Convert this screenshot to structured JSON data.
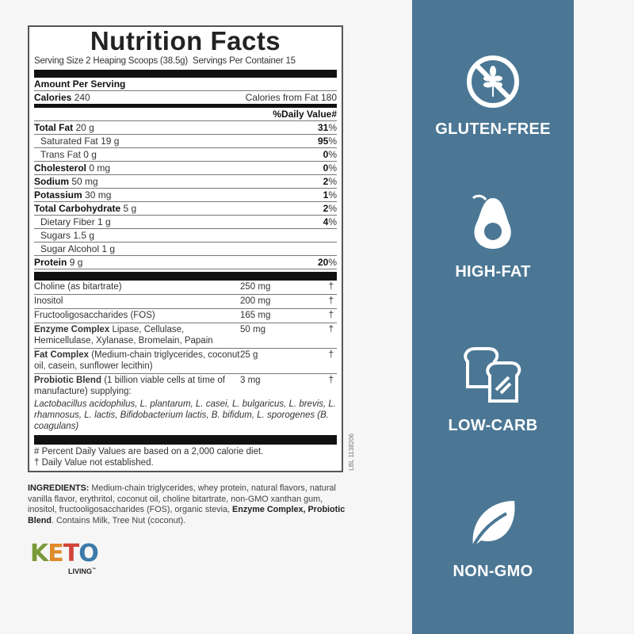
{
  "label": {
    "title": "Nutrition Facts",
    "serving_size": "Serving Size 2 Heaping Scoops (38.5g)",
    "servings_per_container": "Servings Per Container 15",
    "amount_per_serving": "Amount Per Serving",
    "calories_label": "Calories",
    "calories_value": "240",
    "calories_from_fat": "Calories from Fat 180",
    "daily_value_header": "%Daily Value#",
    "nutrients": [
      {
        "name": "Total Fat",
        "amount": "20 g",
        "dv": "31",
        "bold": true
      },
      {
        "name": "Saturated Fat",
        "amount": "19 g",
        "dv": "95",
        "bold": false
      },
      {
        "name": "Trans Fat",
        "amount": "0 g",
        "dv": "0",
        "bold": false
      },
      {
        "name": "Cholesterol",
        "amount": "0 mg",
        "dv": "0",
        "bold": true
      },
      {
        "name": "Sodium",
        "amount": "50 mg",
        "dv": "2",
        "bold": true
      },
      {
        "name": "Potassium",
        "amount": "30 mg",
        "dv": "1",
        "bold": true
      },
      {
        "name": "Total Carbohydrate",
        "amount": "5 g",
        "dv": "2",
        "bold": true
      },
      {
        "name": "Dietary Fiber",
        "amount": "1 g",
        "dv": "4",
        "bold": false
      },
      {
        "name": "Sugars",
        "amount": "1.5 g",
        "dv": "",
        "bold": false
      },
      {
        "name": "Sugar Alcohol",
        "amount": "1 g",
        "dv": "",
        "bold": false
      },
      {
        "name": "Protein",
        "amount": "9 g",
        "dv": "20",
        "bold": true
      }
    ],
    "percent_sign": "%",
    "supplements": [
      {
        "name": "Choline (as bitartrate)",
        "detail": "",
        "amount": "250 mg",
        "dv": "†"
      },
      {
        "name": "Inositol",
        "detail": "",
        "amount": "200 mg",
        "dv": "†"
      },
      {
        "name": "Fructooligosaccharides (FOS)",
        "detail": "",
        "amount": "165 mg",
        "dv": "†"
      },
      {
        "name": "Enzyme Complex",
        "detail": "Lipase, Cellulase, Hemicellulase, Xylanase, Bromelain, Papain",
        "amount": "50 mg",
        "dv": "†"
      },
      {
        "name": "Fat Complex",
        "detail": "(Medium-chain triglycerides, coconut oil, casein, sunflower lecithin)",
        "amount": "25 g",
        "dv": "†"
      },
      {
        "name": "Probiotic Blend",
        "detail": "(1 billion viable cells at time of manufacture) supplying:",
        "amount": "3 mg",
        "dv": "†"
      }
    ],
    "probiotic_strains": "Lactobacillus acidophilus, L. plantarum, L. casei, L. bulgaricus, L. brevis, L. rhamnosus, L. lactis, Bifidobacterium lactis, B. bifidum, L. sporogenes (B. coagulans)",
    "footnote_1": "# Percent Daily Values are based on a 2,000 calorie diet.",
    "footnote_2": "† Daily Value not established.",
    "label_code": "LBL 1138206"
  },
  "ingredients": {
    "heading": "INGREDIENTS:",
    "text": " Medium-chain triglycerides, whey protein, natural flavors, natural vanilla flavor, erythritol, coconut oil, choline bitartrate, non-GMO xanthan gum, inositol, fructooligosaccharides (FOS), organic stevia, ",
    "bold_1": "Enzyme Complex,",
    "space": " ",
    "bold_2": "Probiotic Blend",
    "allergens": ". Contains Milk, Tree Nut (coconut)."
  },
  "logo": {
    "letters": [
      "K",
      "E",
      "T",
      "O"
    ],
    "letter_colors": [
      "#7a9a3a",
      "#e08a2a",
      "#d2453a",
      "#3d7aa8"
    ],
    "sub": "LIVING",
    "tm": "™"
  },
  "panel": {
    "background": "#4b7795",
    "badges": [
      {
        "icon": "no-gluten-wheat-icon",
        "label": "GLUTEN-FREE"
      },
      {
        "icon": "avocado-icon",
        "label": "HIGH-FAT"
      },
      {
        "icon": "bread-slices-icon",
        "label": "LOW-CARB"
      },
      {
        "icon": "leaf-icon",
        "label": "NON-GMO"
      }
    ]
  }
}
